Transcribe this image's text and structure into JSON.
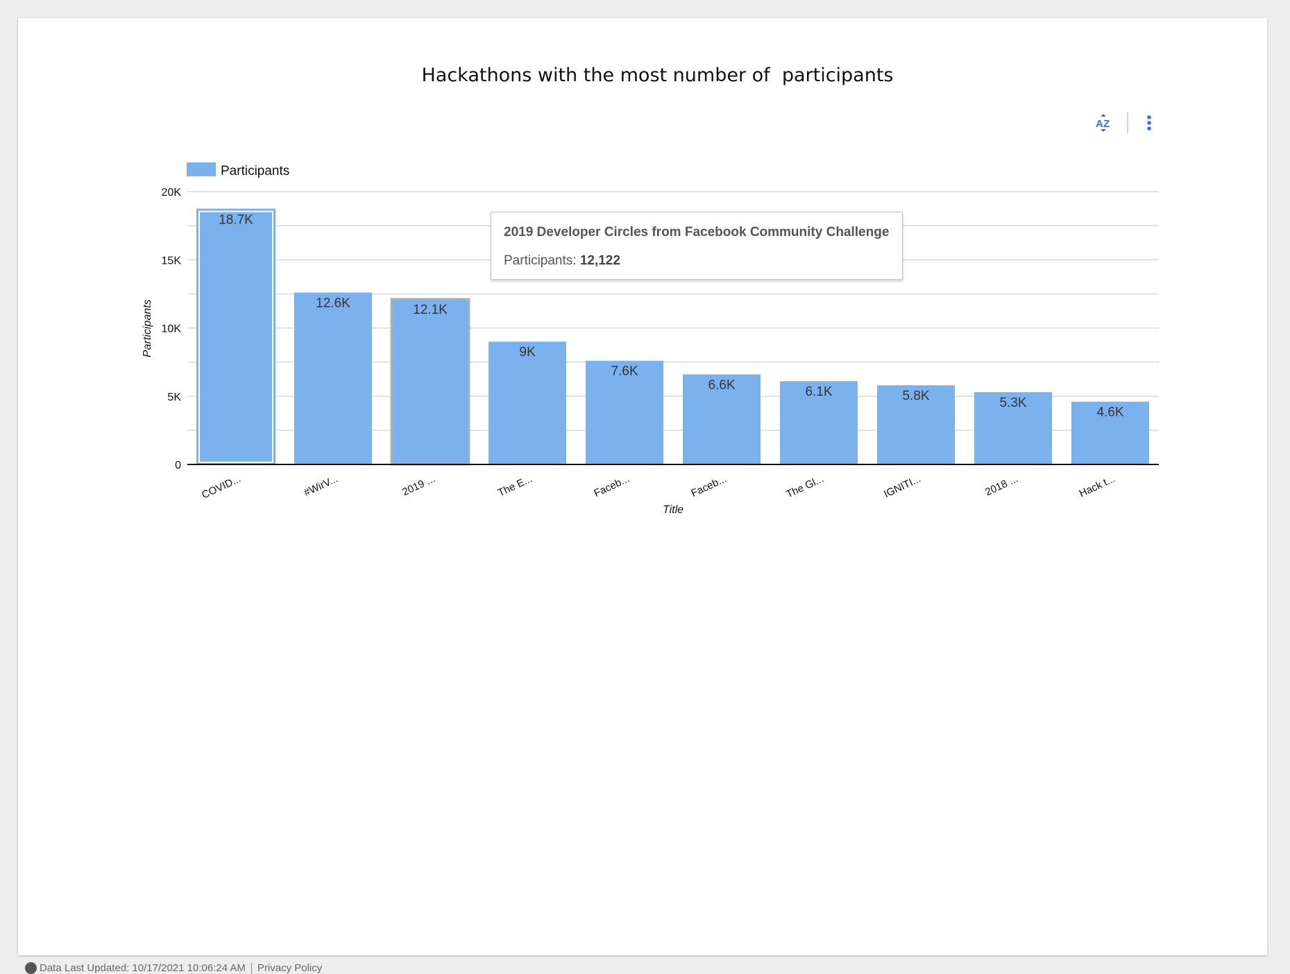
{
  "chart_data": {
    "type": "bar",
    "title": "Hackathons with the most number of  participants",
    "xlabel": "Title",
    "ylabel": "Participants",
    "ylim": [
      0,
      20000
    ],
    "yticks": [
      {
        "value": 0,
        "label": "0"
      },
      {
        "value": 5000,
        "label": "5K"
      },
      {
        "value": 10000,
        "label": "10K"
      },
      {
        "value": 15000,
        "label": "15K"
      },
      {
        "value": 20000,
        "label": "20K"
      }
    ],
    "grid": true,
    "legend_position": "top-left",
    "series": [
      {
        "name": "Participants",
        "color": "#7bb2ee",
        "values": [
          18700,
          12600,
          12122,
          9000,
          7600,
          6600,
          6100,
          5800,
          5300,
          4600
        ],
        "labels": [
          "18.7K",
          "12.6K",
          "12.1K",
          "9K",
          "7.6K",
          "6.6K",
          "6.1K",
          "5.8K",
          "5.3K",
          "4.6K"
        ]
      }
    ],
    "categories": [
      "COVID...",
      "#WirV...",
      "2019 ...",
      "The E...",
      "Faceb...",
      "Faceb...",
      "The Gl...",
      "IGNITI...",
      "2018 ...",
      "Hack t..."
    ],
    "selected_index": 0,
    "hovered_index": 2
  },
  "tooltip": {
    "title": "2019 Developer Circles from Facebook Community Challenge",
    "metric_label": "Participants:",
    "metric_value": "12,122"
  },
  "toolbar": {
    "sort_icon": "sort-az-icon",
    "more_icon": "more-vert-icon",
    "icon_color": "#3a6fd8"
  },
  "footer": {
    "last_updated": "Data Last Updated: 10/17/2021 10:06:24 AM",
    "privacy": "Privacy Policy"
  }
}
